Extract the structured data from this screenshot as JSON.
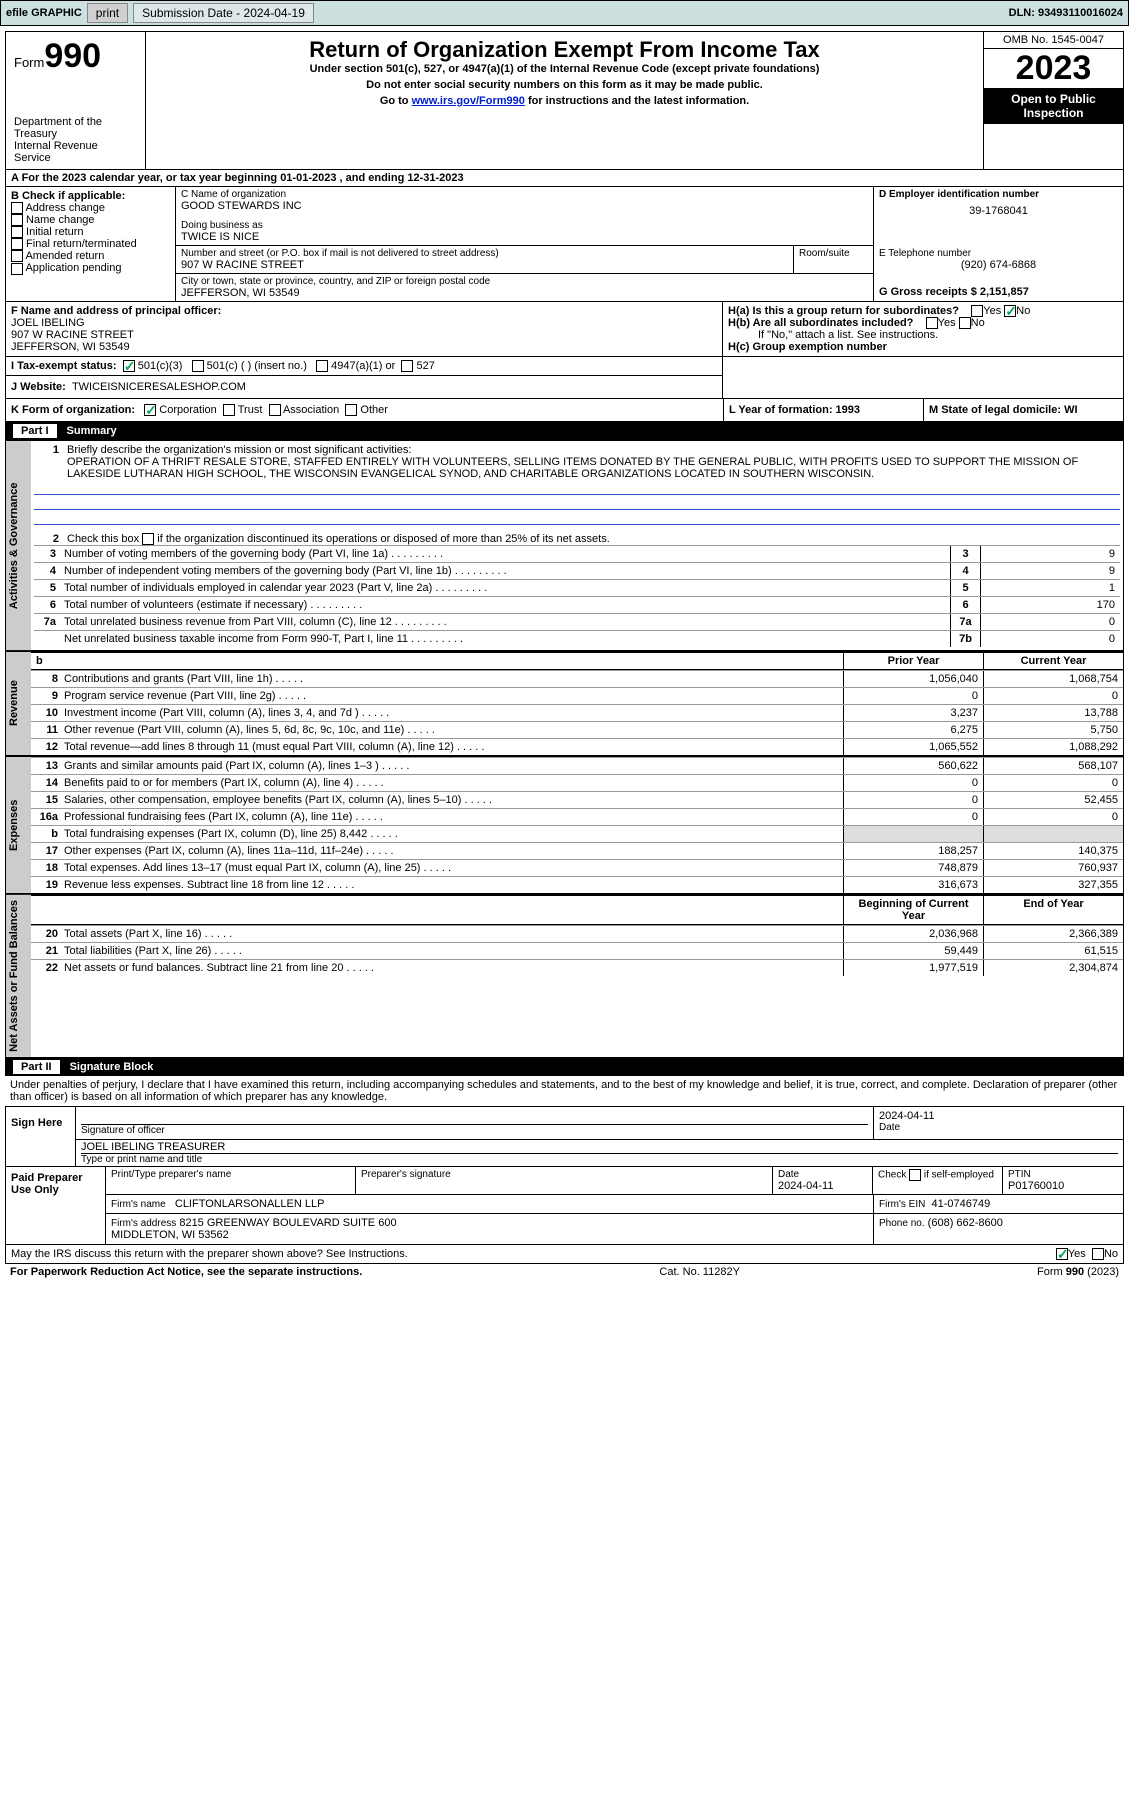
{
  "toolbar": {
    "efile": "efile GRAPHIC",
    "print": "print",
    "sub_label": "Submission Date - 2024-04-19",
    "dln": "DLN: 93493110016024"
  },
  "header": {
    "form": "Form",
    "form_no": "990",
    "dept": "Department of the Treasury\nInternal Revenue Service",
    "title": "Return of Organization Exempt From Income Tax",
    "subtitle": "Under section 501(c), 527, or 4947(a)(1) of the Internal Revenue Code (except private foundations)",
    "ssn_warn": "Do not enter social security numbers on this form as it may be made public.",
    "goto": "Go to ",
    "goto_link": "www.irs.gov/Form990",
    "goto_rest": " for instructions and the latest information.",
    "omb": "OMB No. 1545-0047",
    "year": "2023",
    "open": "Open to Public\nInspection"
  },
  "lineA": "A For the 2023 calendar year, or tax year beginning 01-01-2023   , and ending 12-31-2023",
  "boxB": {
    "label": "B Check if applicable:",
    "items": [
      "Address change",
      "Name change",
      "Initial return",
      "Final return/terminated",
      "Amended return",
      "Application pending"
    ]
  },
  "org": {
    "c_label": "C Name of organization",
    "name": "GOOD STEWARDS INC",
    "dba_label": "Doing business as",
    "dba": "TWICE IS NICE",
    "street_label": "Number and street (or P.O. box if mail is not delivered to street address)",
    "room_label": "Room/suite",
    "street": "907 W RACINE STREET",
    "city_label": "City or town, state or province, country, and ZIP or foreign postal code",
    "city": "JEFFERSON, WI  53549"
  },
  "boxD": {
    "label": "D Employer identification number",
    "val": "39-1768041"
  },
  "boxE": {
    "label": "E Telephone number",
    "val": "(920) 674-6868"
  },
  "boxG": {
    "label": "G Gross receipts $ 2,151,857"
  },
  "boxF": {
    "label": "F Name and address of principal officer:",
    "name": "JOEL IBELING",
    "addr1": "907 W RACINE STREET",
    "addr2": "JEFFERSON, WI  53549"
  },
  "boxH": {
    "a": "H(a)  Is this a group return for subordinates?",
    "yes": "Yes",
    "no": "No",
    "b": "H(b)  Are all subordinates included?",
    "b_note": "If \"No,\" attach a list. See instructions.",
    "c": "H(c)  Group exemption number"
  },
  "boxI": {
    "label": "I    Tax-exempt status:",
    "opt1": "501(c)(3)",
    "opt2": "501(c) (  ) (insert no.)",
    "opt3": "4947(a)(1) or",
    "opt4": "527"
  },
  "boxJ": {
    "label": "J    Website:",
    "val": "TWICEISNICERESALESHOP.COM"
  },
  "boxK": {
    "label": "K Form of organization:",
    "opts": [
      "Corporation",
      "Trust",
      "Association",
      "Other"
    ]
  },
  "boxL": {
    "label": "L Year of formation: 1993"
  },
  "boxM": {
    "label": "M State of legal domicile: WI"
  },
  "part1": {
    "title": "Part I",
    "heading": "Summary",
    "l1_label": "Briefly describe the organization's mission or most significant activities:",
    "l1_text": "OPERATION OF A THRIFT RESALE STORE, STAFFED ENTIRELY WITH VOLUNTEERS, SELLING ITEMS DONATED BY THE GENERAL PUBLIC, WITH PROFITS USED TO SUPPORT THE MISSION OF LAKESIDE LUTHARAN HIGH SCHOOL, THE WISCONSIN EVANGELICAL SYNOD, AND CHARITABLE ORGANIZATIONS LOCATED IN SOUTHERN WISCONSIN.",
    "l2": "Check this box        if the organization discontinued its operations or disposed of more than 25% of its net assets.",
    "lines_simple": [
      {
        "n": "3",
        "d": "Number of voting members of the governing body (Part VI, line 1a)",
        "v": "9"
      },
      {
        "n": "4",
        "d": "Number of independent voting members of the governing body (Part VI, line 1b)",
        "v": "9"
      },
      {
        "n": "5",
        "d": "Total number of individuals employed in calendar year 2023 (Part V, line 2a)",
        "v": "1"
      },
      {
        "n": "6",
        "d": "Total number of volunteers (estimate if necessary)",
        "v": "170"
      },
      {
        "n": "7a",
        "d": "Total unrelated business revenue from Part VIII, column (C), line 12",
        "v": "0"
      },
      {
        "n": "",
        "d": "Net unrelated business taxable income from Form 990-T, Part I, line 11",
        "nb": "7b",
        "v": "0"
      }
    ],
    "col_headers": {
      "b": "b",
      "py": "Prior Year",
      "cy": "Current Year"
    },
    "sections": [
      {
        "label": "Revenue",
        "rows": [
          {
            "n": "8",
            "d": "Contributions and grants (Part VIII, line 1h)",
            "py": "1,056,040",
            "cy": "1,068,754"
          },
          {
            "n": "9",
            "d": "Program service revenue (Part VIII, line 2g)",
            "py": "0",
            "cy": "0"
          },
          {
            "n": "10",
            "d": "Investment income (Part VIII, column (A), lines 3, 4, and 7d )",
            "py": "3,237",
            "cy": "13,788"
          },
          {
            "n": "11",
            "d": "Other revenue (Part VIII, column (A), lines 5, 6d, 8c, 9c, 10c, and 11e)",
            "py": "6,275",
            "cy": "5,750"
          },
          {
            "n": "12",
            "d": "Total revenue—add lines 8 through 11 (must equal Part VIII, column (A), line 12)",
            "py": "1,065,552",
            "cy": "1,088,292"
          }
        ]
      },
      {
        "label": "Expenses",
        "rows": [
          {
            "n": "13",
            "d": "Grants and similar amounts paid (Part IX, column (A), lines 1–3 )",
            "py": "560,622",
            "cy": "568,107"
          },
          {
            "n": "14",
            "d": "Benefits paid to or for members (Part IX, column (A), line 4)",
            "py": "0",
            "cy": "0"
          },
          {
            "n": "15",
            "d": "Salaries, other compensation, employee benefits (Part IX, column (A), lines 5–10)",
            "py": "0",
            "cy": "52,455"
          },
          {
            "n": "16a",
            "d": "Professional fundraising fees (Part IX, column (A), line 11e)",
            "py": "0",
            "cy": "0"
          },
          {
            "n": "b",
            "d": "Total fundraising expenses (Part IX, column (D), line 25) 8,442",
            "py": "",
            "cy": ""
          },
          {
            "n": "17",
            "d": "Other expenses (Part IX, column (A), lines 11a–11d, 11f–24e)",
            "py": "188,257",
            "cy": "140,375"
          },
          {
            "n": "18",
            "d": "Total expenses. Add lines 13–17 (must equal Part IX, column (A), line 25)",
            "py": "748,879",
            "cy": "760,937"
          },
          {
            "n": "19",
            "d": "Revenue less expenses. Subtract line 18 from line 12",
            "py": "316,673",
            "cy": "327,355"
          }
        ]
      },
      {
        "label": "Net Assets or Fund Balances",
        "head": {
          "py": "Beginning of Current Year",
          "cy": "End of Year"
        },
        "rows": [
          {
            "n": "20",
            "d": "Total assets (Part X, line 16)",
            "py": "2,036,968",
            "cy": "2,366,389"
          },
          {
            "n": "21",
            "d": "Total liabilities (Part X, line 26)",
            "py": "59,449",
            "cy": "61,515"
          },
          {
            "n": "22",
            "d": "Net assets or fund balances. Subtract line 21 from line 20",
            "py": "1,977,519",
            "cy": "2,304,874"
          }
        ]
      }
    ],
    "gov_label": "Activities & Governance"
  },
  "part2": {
    "title": "Part II",
    "heading": "Signature Block",
    "perjury": "Under penalties of perjury, I declare that I have examined this return, including accompanying schedules and statements, and to the best of my knowledge and belief, it is true, correct, and complete. Declaration of preparer (other than officer) is based on all information of which preparer has any knowledge.",
    "sign_here": "Sign Here",
    "sig_officer": "Signature of officer",
    "sig_name": "JOEL IBELING  TREASURER",
    "sig_type": "Type or print name and title",
    "date_label": "Date",
    "date_val": "2024-04-11",
    "paid": "Paid Preparer Use Only",
    "prep_name_label": "Print/Type preparer's name",
    "prep_sig_label": "Preparer's signature",
    "prep_date": "2024-04-11",
    "check_self": "Check         if self-employed",
    "ptin_label": "PTIN",
    "ptin": "P01760010",
    "firm_name_label": "Firm's name",
    "firm_name": "CLIFTONLARSONALLEN LLP",
    "firm_ein_label": "Firm's EIN",
    "firm_ein": "41-0746749",
    "firm_addr_label": "Firm's address",
    "firm_addr": "8215 GREENWAY BOULEVARD SUITE 600\nMIDDLETON, WI  53562",
    "phone_label": "Phone no.",
    "phone": "(608) 662-8600",
    "discuss": "May the IRS discuss this return with the preparer shown above? See Instructions.",
    "yes": "Yes",
    "no": "No"
  },
  "footer": {
    "paperwork": "For Paperwork Reduction Act Notice, see the separate instructions.",
    "catno": "Cat. No. 11282Y",
    "form": "Form 990 (2023)"
  }
}
